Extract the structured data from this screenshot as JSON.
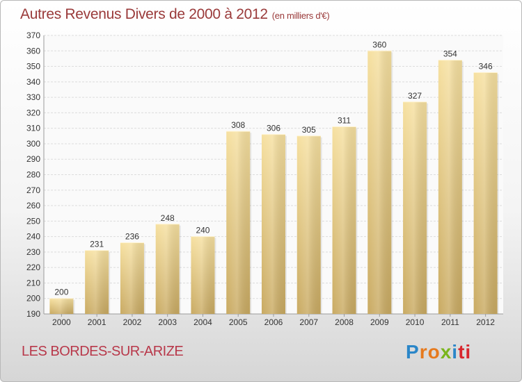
{
  "header": {
    "title": "Autres Revenus Divers de 2000 à 2012",
    "unit": "(en milliers d'€)"
  },
  "footer": {
    "commune": "LES BORDES-SUR-ARIZE",
    "logo_letters": [
      "P",
      "r",
      "o",
      "x",
      "i",
      "ti"
    ]
  },
  "chart_data": {
    "type": "bar",
    "title": "Autres Revenus Divers de 2000 à 2012",
    "xlabel": "",
    "ylabel": "",
    "categories": [
      "2000",
      "2001",
      "2002",
      "2003",
      "2004",
      "2005",
      "2006",
      "2007",
      "2008",
      "2009",
      "2010",
      "2011",
      "2012"
    ],
    "values": [
      200,
      231,
      236,
      248,
      240,
      308,
      306,
      305,
      311,
      360,
      327,
      354,
      346
    ],
    "ylim": [
      190,
      370
    ],
    "yticks": [
      190,
      200,
      210,
      220,
      230,
      240,
      250,
      260,
      270,
      280,
      290,
      300,
      310,
      320,
      330,
      340,
      350,
      360,
      370
    ],
    "grid": true,
    "bar_color": "#e8cc80"
  }
}
